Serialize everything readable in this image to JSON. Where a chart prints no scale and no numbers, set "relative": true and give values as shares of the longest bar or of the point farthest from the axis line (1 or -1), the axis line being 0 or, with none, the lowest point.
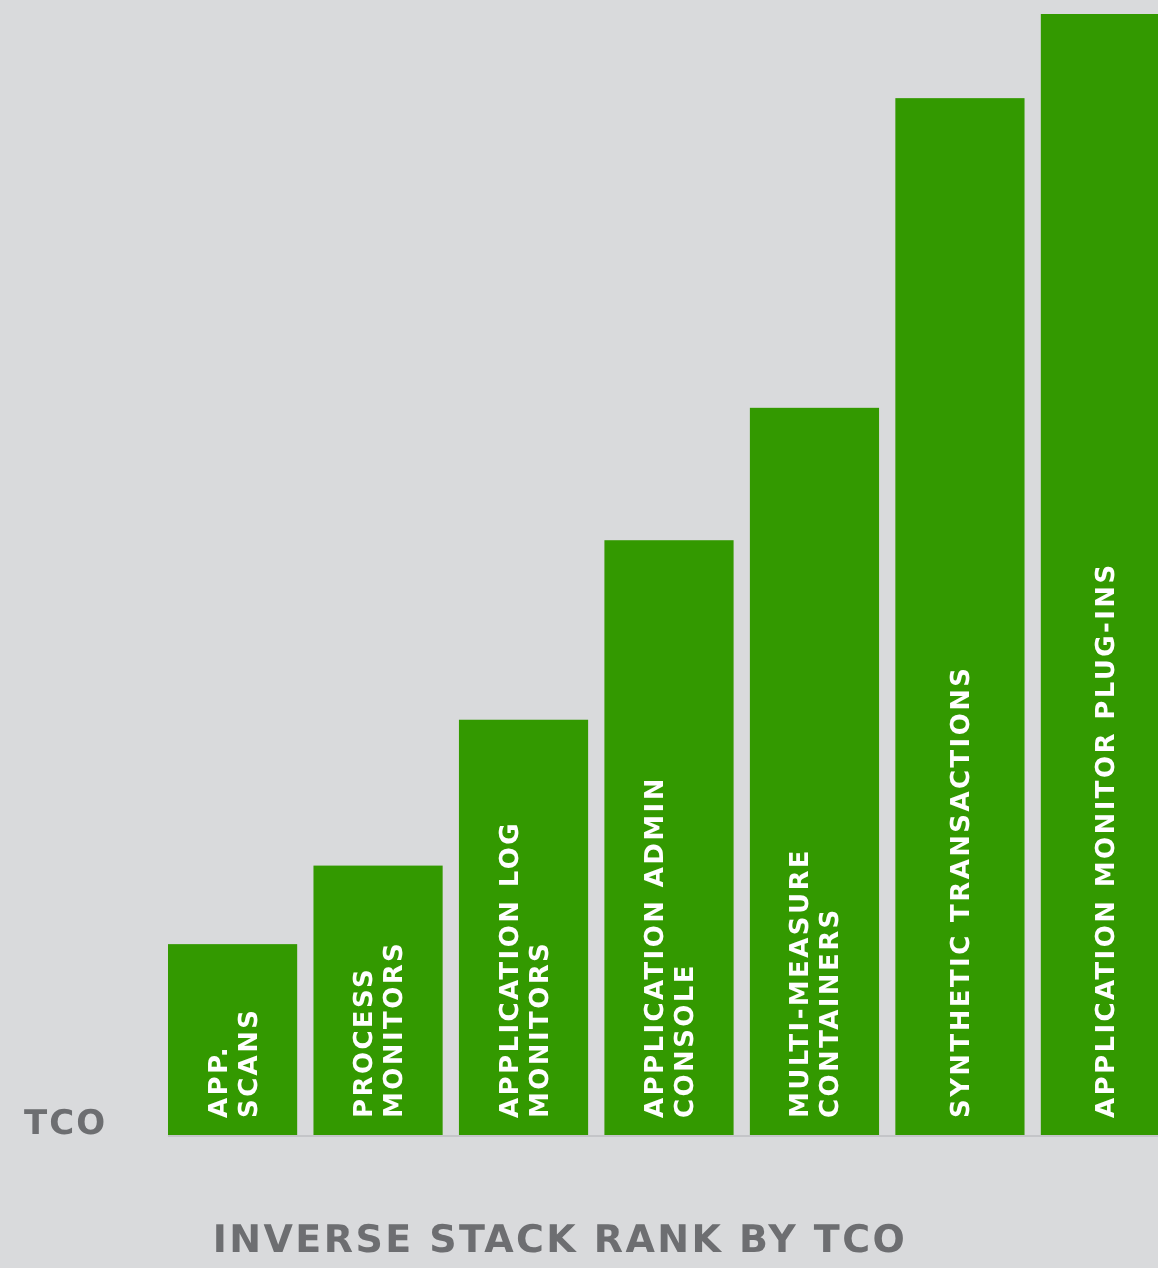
{
  "chart_data": {
    "type": "bar",
    "relative": true,
    "xlabel": "INVERSE STACK RANK BY TCO",
    "ylabel": "TCO",
    "categories": [
      "APP.\nSCANS",
      "PROCESS\nMONITORS",
      "APPLICATION LOG\nMONITORS",
      "APPLICATION ADMIN\nCONSOLE",
      "MULTI-MEASURE\nCONTAINERS",
      "SYNTHETIC TRANSACTIONS",
      "APPLICATION MONITOR PLUG-INS"
    ],
    "values": [
      0.171,
      0.241,
      0.371,
      0.531,
      0.649,
      0.925,
      1
    ],
    "color": "#339900"
  }
}
